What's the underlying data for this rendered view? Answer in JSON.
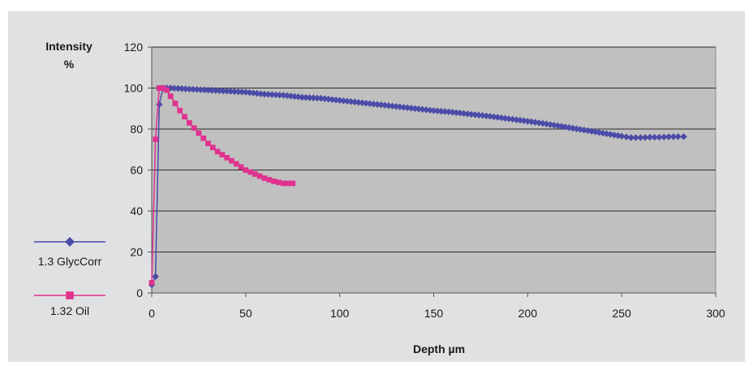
{
  "chart_data": {
    "type": "line",
    "title": "",
    "ylabel_line1": "Intensity",
    "ylabel_line2": "%",
    "xlabel": "Depth µm",
    "xlim": [
      0,
      300
    ],
    "ylim": [
      0,
      120
    ],
    "x_ticks": [
      "0",
      "50",
      "100",
      "150",
      "200",
      "250",
      "300"
    ],
    "y_ticks": [
      "0",
      "20",
      "40",
      "60",
      "80",
      "100",
      "120"
    ],
    "grid": "horizontal",
    "legend_position": "left",
    "series": [
      {
        "name": "1.3 GlycCorr",
        "color": "#4b4ba8",
        "marker": "diamond",
        "x": [
          0,
          2,
          4,
          6,
          10,
          20,
          30,
          40,
          50,
          60,
          70,
          80,
          90,
          100,
          110,
          120,
          130,
          140,
          150,
          160,
          170,
          180,
          190,
          200,
          210,
          220,
          230,
          240,
          250,
          255,
          260,
          265,
          270,
          275,
          280,
          283
        ],
        "y": [
          4,
          8,
          92,
          100,
          100,
          99.5,
          99,
          98.5,
          98,
          97,
          96.5,
          95.5,
          95,
          94,
          93,
          92,
          91,
          90,
          89,
          88.2,
          87.2,
          86.2,
          85,
          83.8,
          82.5,
          81,
          79.5,
          78,
          76.5,
          75.8,
          75.8,
          76,
          76,
          76.2,
          76.3,
          76.3
        ]
      },
      {
        "name": "1.32 Oil",
        "color": "#e0328f",
        "marker": "square",
        "x": [
          0,
          2,
          4,
          6,
          8,
          10,
          15,
          20,
          25,
          30,
          35,
          40,
          45,
          50,
          55,
          60,
          65,
          70,
          75
        ],
        "y": [
          5,
          75,
          100,
          100,
          99,
          96,
          89,
          83,
          78,
          73,
          69,
          66,
          63,
          60,
          58,
          56,
          54.5,
          53.5,
          53.5
        ]
      }
    ]
  }
}
